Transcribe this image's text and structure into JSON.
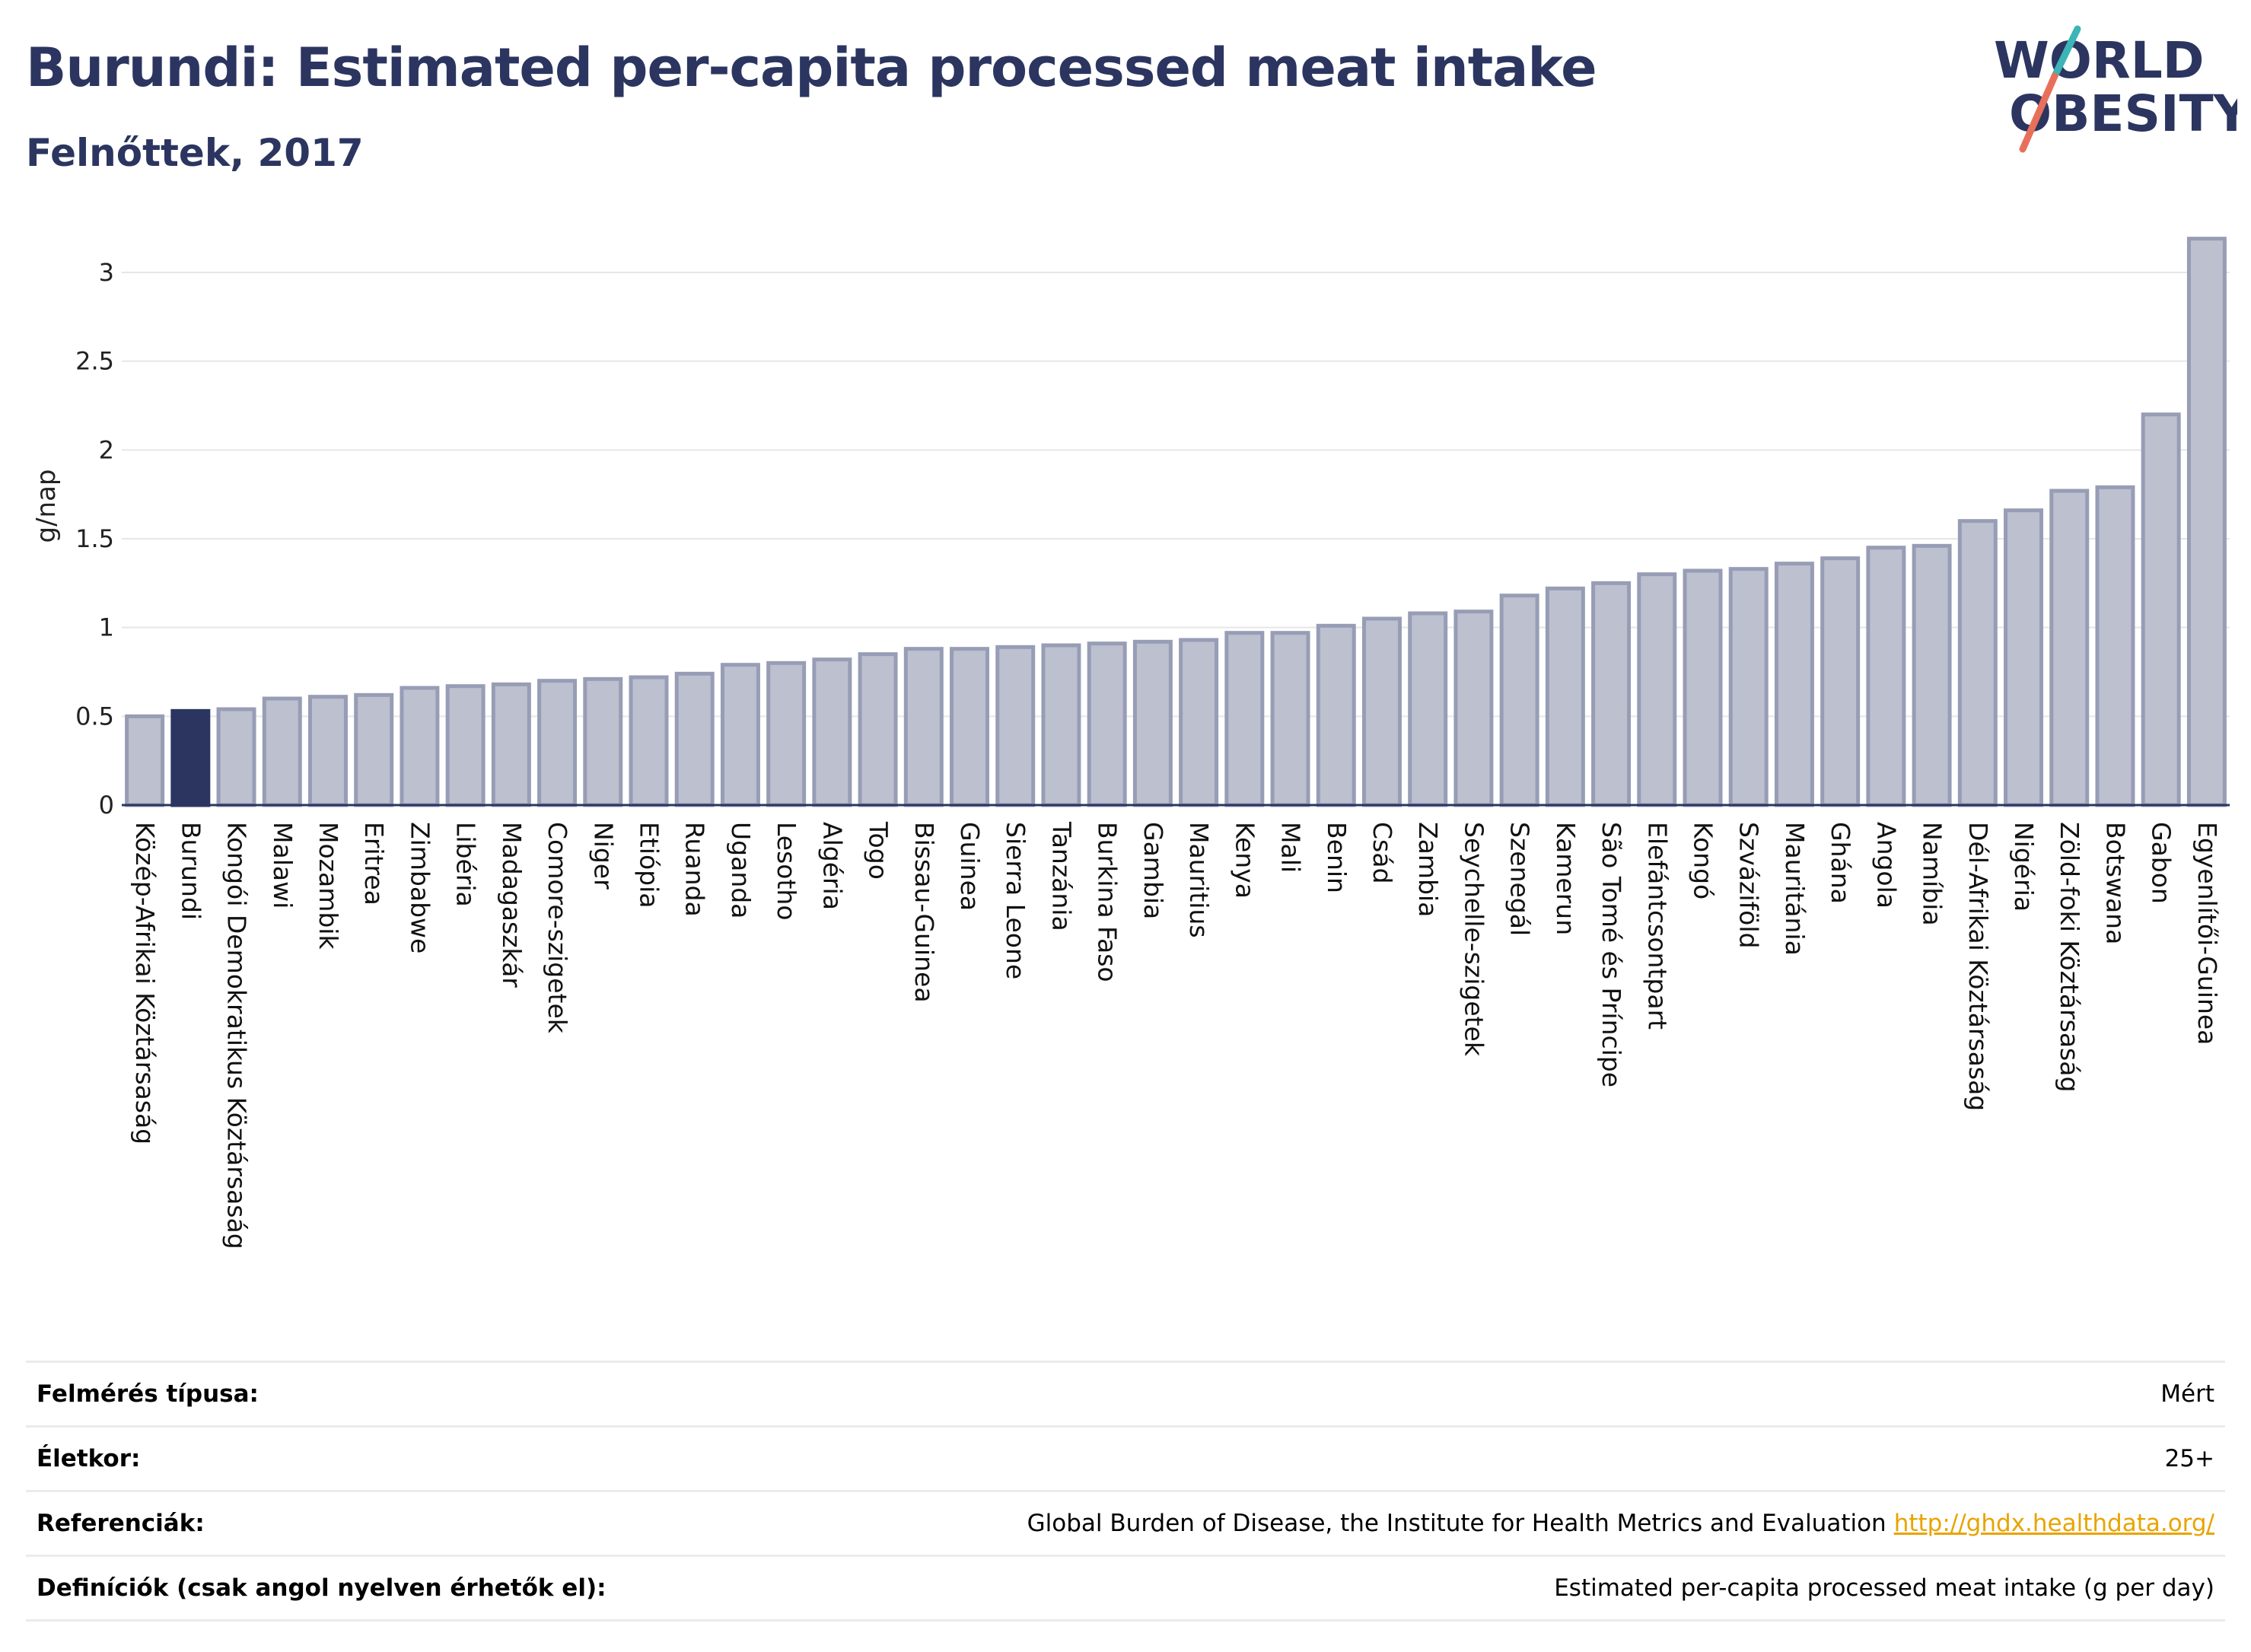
{
  "header": {
    "title": "Burundi: Estimated per-capita processed meat intake",
    "subtitle": "Felnőttek, 2017"
  },
  "logo": {
    "line1": "WORLD",
    "line2": "OBESITY"
  },
  "colors": {
    "highlight": "#2b3560",
    "bar_fill": "#bcc0cf",
    "bar_stroke": "#979db5",
    "title": "#2b3560",
    "link": "#e8a400",
    "logo_teal": "#3bb5b5",
    "logo_coral": "#e8705a"
  },
  "chart_data": {
    "type": "bar",
    "ylabel": "g/nap",
    "ylim": [
      0,
      3.2
    ],
    "yticks": [
      "0",
      "0.5",
      "1",
      "1.5",
      "2",
      "2.5",
      "3"
    ],
    "highlight": "Burundi",
    "categories": [
      "Közép-Afrikai Köztársaság",
      "Burundi",
      "Kongói Demokratikus Köztársaság",
      "Malawi",
      "Mozambik",
      "Eritrea",
      "Zimbabwe",
      "Libéria",
      "Madagaszkár",
      "Comore-szigetek",
      "Niger",
      "Etiópia",
      "Ruanda",
      "Uganda",
      "Lesotho",
      "Algéria",
      "Togo",
      "Bissau-Guinea",
      "Guinea",
      "Sierra Leone",
      "Tanzánia",
      "Burkina Faso",
      "Gambia",
      "Mauritius",
      "Kenya",
      "Mali",
      "Benin",
      "Csád",
      "Zambia",
      "Seychelle-szigetek",
      "Szenegál",
      "Kamerun",
      "São Tomé és Príncipe",
      "Elefántcsontpart",
      "Kongó",
      "Szváziföld",
      "Mauritánia",
      "Ghána",
      "Angola",
      "Namíbia",
      "Dél-Afrikai Köztársaság",
      "Nigéria",
      "Zöld-foki Köztársaság",
      "Botswana",
      "Gabon",
      "Egyenlítői-Guinea"
    ],
    "values": [
      0.5,
      0.53,
      0.54,
      0.6,
      0.61,
      0.62,
      0.66,
      0.67,
      0.68,
      0.7,
      0.71,
      0.72,
      0.74,
      0.79,
      0.8,
      0.82,
      0.85,
      0.88,
      0.88,
      0.89,
      0.9,
      0.91,
      0.92,
      0.93,
      0.97,
      0.97,
      1.01,
      1.05,
      1.08,
      1.09,
      1.18,
      1.22,
      1.25,
      1.3,
      1.32,
      1.33,
      1.36,
      1.39,
      1.45,
      1.46,
      1.6,
      1.66,
      1.77,
      1.79,
      2.2,
      3.19
    ]
  },
  "meta": {
    "rows": [
      {
        "label": "Felmérés típusa:",
        "value": "Mért"
      },
      {
        "label": "Életkor:",
        "value": "25+"
      },
      {
        "label": "Referenciák:",
        "value": "Global Burden of Disease, the Institute for Health Metrics and Evaluation",
        "link": "http://ghdx.healthdata.org/"
      },
      {
        "label": "Definíciók (csak angol nyelven érhetők el):",
        "value": "Estimated per-capita processed meat intake (g per day)"
      }
    ]
  }
}
